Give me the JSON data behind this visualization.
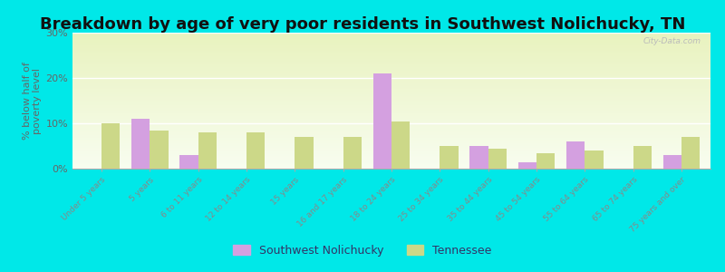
{
  "title": "Breakdown by age of very poor residents in Southwest Nolichucky, TN",
  "ylabel": "% below half of\npoverty level",
  "categories": [
    "Under 5 years",
    "5 years",
    "6 to 11 years",
    "12 to 14 years",
    "15 years",
    "16 and 17 years",
    "18 to 24 years",
    "25 to 34 years",
    "35 to 44 years",
    "45 to 54 years",
    "55 to 64 years",
    "65 to 74 years",
    "75 years and over"
  ],
  "sw_vals": [
    0,
    11,
    3,
    0,
    0,
    0,
    21,
    0,
    5,
    1.5,
    6,
    0,
    3
  ],
  "tn_vals": [
    10,
    8.5,
    8,
    8,
    7,
    7,
    10.5,
    5,
    4.5,
    3.5,
    4,
    5,
    7
  ],
  "sw_color": "#d4a0e0",
  "tn_color": "#ccd888",
  "outer_bg": "#00e8e8",
  "plot_bg_top": "#e8f2be",
  "plot_bg_bottom": "#f8fdf0",
  "ylim_max": 30,
  "yticks": [
    0,
    10,
    20,
    30
  ],
  "ytick_labels": [
    "0%",
    "10%",
    "20%",
    "30%"
  ],
  "title_fontsize": 13,
  "watermark": "City-Data.com",
  "legend_sw": "Southwest Nolichucky",
  "legend_tn": "Tennessee",
  "bar_width": 0.38
}
